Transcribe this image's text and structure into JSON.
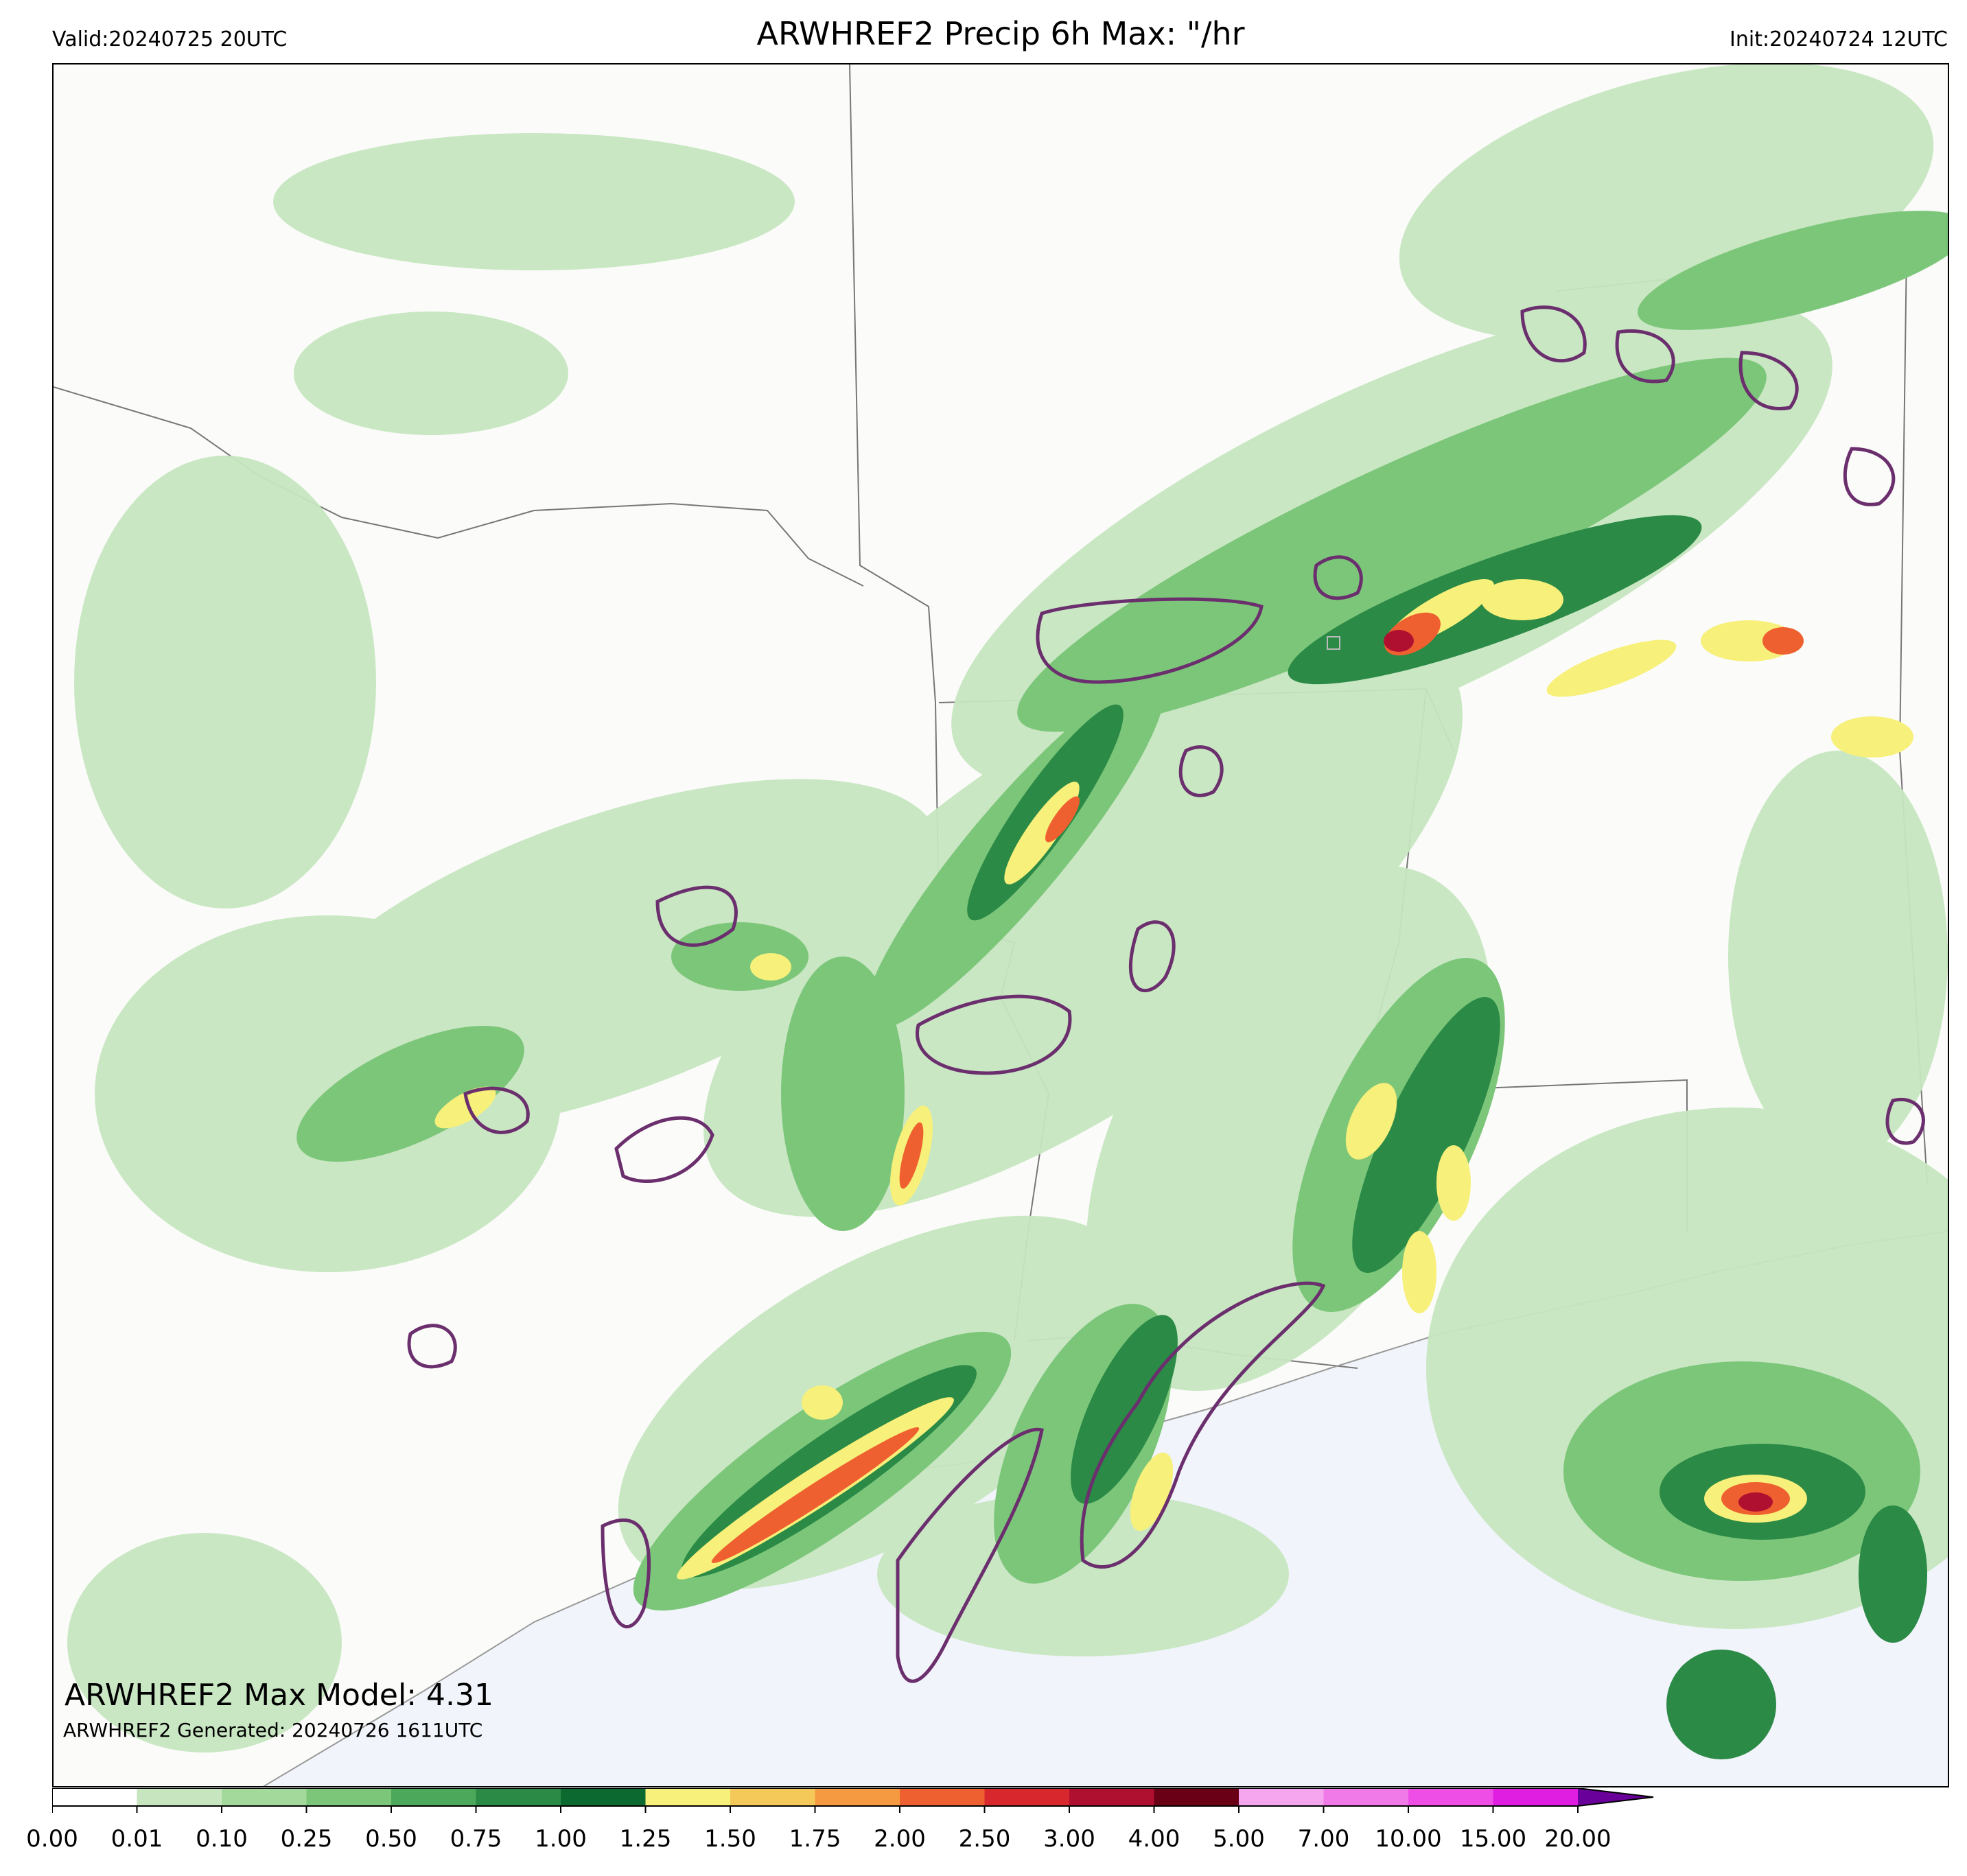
{
  "header": {
    "valid": "Valid:20240725 20UTC",
    "title": "ARWHREF2 Precip 6h Max: \"/hr",
    "init": "Init:20240724 12UTC"
  },
  "overlay": {
    "max_model": "ARWHREF2 Max Model: 4.31",
    "generated": "ARWHREF2 Generated: 20240726 1611UTC"
  },
  "colorbar": {
    "ticks": [
      "0.00",
      "0.01",
      "0.10",
      "0.25",
      "0.50",
      "0.75",
      "1.00",
      "1.25",
      "1.50",
      "1.75",
      "2.00",
      "2.50",
      "3.00",
      "4.00",
      "5.00",
      "7.00",
      "10.00",
      "15.00",
      "20.00"
    ],
    "colors": [
      "#ffffff",
      "#c7e6c0",
      "#a3d99a",
      "#7cc67a",
      "#4ca85a",
      "#2b8a46",
      "#0c6a30",
      "#f7f07a",
      "#f5c85a",
      "#f59a40",
      "#ef6030",
      "#d8282e",
      "#b01030",
      "#6a0015",
      "#f6a6ee",
      "#f07ae8",
      "#ee4ee6",
      "#e01ee2",
      "#9a00c8"
    ],
    "extend_color": "#6a009a"
  },
  "map": {
    "background": "#fbfbf9",
    "gulf_color": "#f1f4fa",
    "purple_contour": "#6b2f6e"
  }
}
